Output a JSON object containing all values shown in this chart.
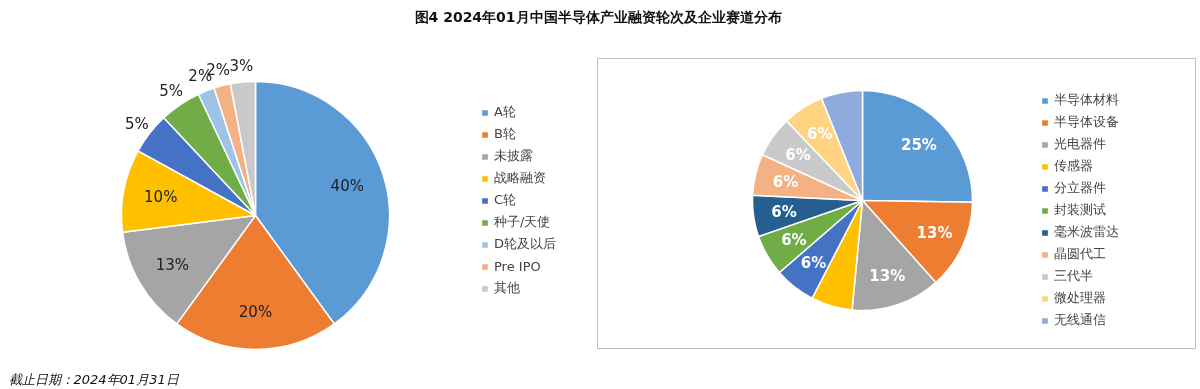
{
  "chart_data": [
    {
      "type": "pie",
      "title": "图4  2024年01月中国半导体产业融资轮次及企业赛道分布",
      "categories": [
        "A轮",
        "B轮",
        "未披露",
        "战略融资",
        "C轮",
        "种子/天使",
        "D轮及以后",
        "Pre IPO",
        "其他"
      ],
      "values": [
        40,
        20,
        13,
        10,
        5,
        5,
        2,
        2,
        3
      ],
      "colors": [
        "#5b9bd5",
        "#ed7d31",
        "#a5a5a5",
        "#ffc000",
        "#4472c4",
        "#70ad47",
        "#9dc3e6",
        "#f4b183",
        "#c9c9c9"
      ],
      "value_labels": [
        "40%",
        "20%",
        "13%",
        "10%",
        "5%",
        "5%",
        "2%",
        "2%",
        "3%"
      ],
      "legend": "right",
      "annotations": [
        "截止日期：2024年01月31日"
      ]
    },
    {
      "type": "pie",
      "categories": [
        "半导体材料",
        "半导体设备",
        "光电器件",
        "传感器",
        "分立器件",
        "封装测试",
        "毫米波雷达",
        "晶圆代工",
        "三代半",
        "微处理器",
        "无线通信"
      ],
      "values": [
        25,
        13,
        13,
        6,
        6,
        6,
        6,
        6,
        6,
        6,
        6
      ],
      "value_labels": [
        "25%",
        "13%",
        "13%",
        null,
        "6%",
        "6%",
        "6%",
        "6%",
        "6%",
        "6%",
        null
      ],
      "colors": [
        "#5b9bd5",
        "#ed7d31",
        "#a5a5a5",
        "#ffc000",
        "#4472c4",
        "#70ad47",
        "#255e91",
        "#f4b183",
        "#c9c9c9",
        "#ffd380",
        "#8faadc"
      ],
      "legend": "right"
    }
  ]
}
